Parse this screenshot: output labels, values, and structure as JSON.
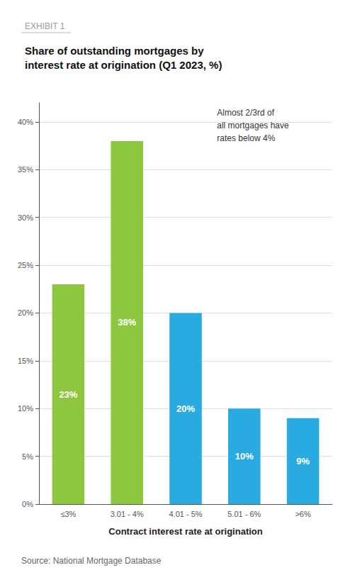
{
  "chart_data": {
    "type": "bar",
    "subtitle": "EXHIBIT 1",
    "title": "Share of outstanding mortgages by\ninterest rate at origination (Q1 2023, %)",
    "categories": [
      "≤3%",
      "3.01 - 4%",
      "4.01 - 5%",
      "5.01 - 6%",
      ">6%"
    ],
    "values": [
      23,
      38,
      20,
      10,
      9
    ],
    "value_labels": [
      "23%",
      "38%",
      "20%",
      "10%",
      "9%"
    ],
    "data_labels": true,
    "colors": [
      "#8dc63f",
      "#8dc63f",
      "#29abe2",
      "#29abe2",
      "#29abe2"
    ],
    "annotation": "Almost 2/3rd of\nall mortgages have\nrates below 4%",
    "xlabel": "Contract interest rate at origination",
    "ylim": [
      0,
      42
    ],
    "yticks": [
      {
        "value": 0,
        "label": "0%"
      },
      {
        "value": 5,
        "label": "5%"
      },
      {
        "value": 10,
        "label": "10%"
      },
      {
        "value": 15,
        "label": "15%"
      },
      {
        "value": 20,
        "label": "20%"
      },
      {
        "value": 25,
        "label": "25%"
      },
      {
        "value": 30,
        "label": "30%"
      },
      {
        "value": 35,
        "label": "35%"
      },
      {
        "value": 40,
        "label": "40%"
      }
    ],
    "grid": true,
    "source": "Source: National Mortgage Database"
  }
}
